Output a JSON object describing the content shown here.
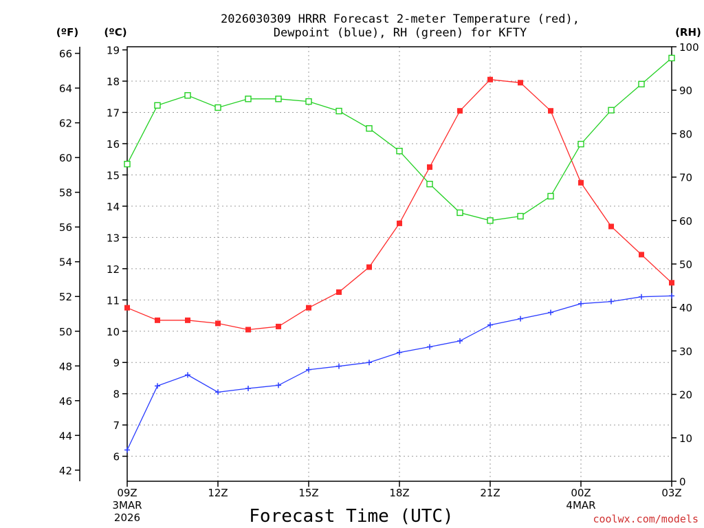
{
  "chart_data": {
    "type": "line",
    "title_line1": "2026030309 HRRR Forecast 2-meter Temperature (red),",
    "title_line2": "Dewpoint (blue), RH (green) for KFTY",
    "xlabel": "Forecast Time (UTC)",
    "credit": "coolwx.com/models",
    "units": {
      "fahrenheit": "(ºF)",
      "celsius": "(ºC)",
      "rh": "(RH)"
    },
    "celsius_range": [
      5.2,
      19.1
    ],
    "rh_range": [
      0,
      100
    ],
    "x_count": 19,
    "x_tick_labels": [
      {
        "index": 0,
        "label": "09Z",
        "date": "3MAR",
        "year": "2026"
      },
      {
        "index": 3,
        "label": "12Z"
      },
      {
        "index": 6,
        "label": "15Z"
      },
      {
        "index": 9,
        "label": "18Z"
      },
      {
        "index": 12,
        "label": "21Z"
      },
      {
        "index": 15,
        "label": "00Z",
        "date": "4MAR"
      },
      {
        "index": 18,
        "label": "03Z"
      }
    ],
    "celsius_ticks": [
      6,
      7,
      8,
      9,
      10,
      11,
      12,
      13,
      14,
      15,
      16,
      17,
      18,
      19
    ],
    "fahrenheit_ticks": [
      42,
      44,
      46,
      48,
      50,
      52,
      54,
      56,
      58,
      60,
      62,
      64,
      66
    ],
    "rh_ticks": [
      0,
      10,
      20,
      30,
      40,
      50,
      60,
      70,
      80,
      90,
      100
    ],
    "series": [
      {
        "name": "Temperature",
        "axis": "celsius",
        "color": "#ff2a2a",
        "marker": "filled-square",
        "values": [
          10.75,
          10.35,
          10.35,
          10.25,
          10.05,
          10.15,
          10.75,
          11.25,
          12.05,
          13.45,
          15.25,
          17.05,
          18.05,
          17.95,
          17.05,
          14.75,
          13.35,
          12.45,
          11.55
        ]
      },
      {
        "name": "Dewpoint",
        "axis": "celsius",
        "color": "#2a3cff",
        "marker": "plus",
        "values": [
          6.2,
          8.25,
          8.6,
          8.05,
          8.17,
          8.27,
          8.77,
          8.88,
          9.0,
          9.32,
          9.5,
          9.69,
          10.2,
          10.4,
          10.6,
          10.88,
          10.95,
          11.1,
          11.13
        ]
      },
      {
        "name": "RH",
        "axis": "rh",
        "color": "#22d022",
        "marker": "open-square",
        "values": [
          73,
          86.5,
          88.8,
          86.0,
          88.0,
          88.0,
          87.4,
          85.2,
          81.2,
          76.0,
          68.4,
          61.8,
          60.0,
          61.0,
          65.6,
          77.6,
          85.4,
          91.4,
          97.4
        ]
      }
    ]
  }
}
